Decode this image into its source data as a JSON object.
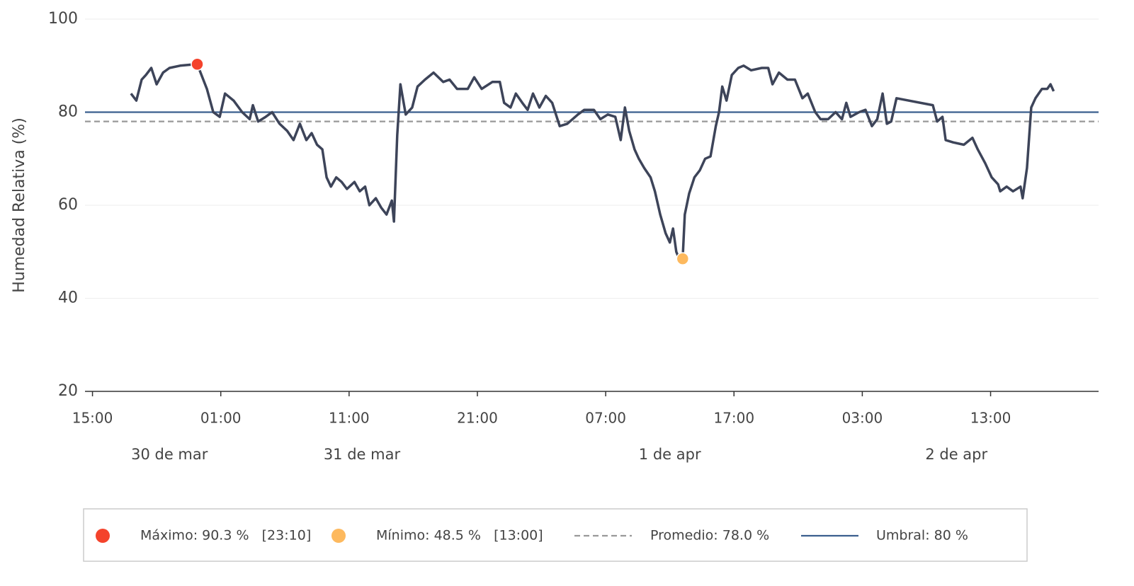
{
  "chart_data": {
    "type": "line",
    "ylabel": "Humedad Relativa (%)",
    "ylim": [
      20,
      100
    ],
    "yticks": [
      20,
      40,
      60,
      80,
      100
    ],
    "grid": true,
    "xlim": [
      "03-30 14:25",
      "04-02 21:25"
    ],
    "xticks": [
      {
        "value": "03-30 15:00",
        "label": "15:00"
      },
      {
        "value": "03-31 01:00",
        "label": "01:00"
      },
      {
        "value": "03-31 11:00",
        "label": "11:00"
      },
      {
        "value": "03-31 21:00",
        "label": "21:00"
      },
      {
        "value": "04-01 07:00",
        "label": "07:00"
      },
      {
        "value": "04-01 17:00",
        "label": "17:00"
      },
      {
        "value": "04-02 03:00",
        "label": "03:00"
      },
      {
        "value": "04-02 13:00",
        "label": "13:00"
      }
    ],
    "day_labels": [
      {
        "value": "03-30 21:00",
        "label": "30 de mar"
      },
      {
        "value": "03-31 12:00",
        "label": "31 de mar"
      },
      {
        "value": "04-01 12:00",
        "label": "1 de apr"
      },
      {
        "value": "04-02 10:20",
        "label": "2 de apr"
      }
    ],
    "color": "#3d4459",
    "x": [
      "03-30 18:00",
      "03-30 18:25",
      "03-30 18:50",
      "03-30 19:10",
      "03-30 19:35",
      "03-30 20:00",
      "03-30 20:30",
      "03-30 21:00",
      "03-30 21:50",
      "03-30 22:40",
      "03-30 23:10",
      "03-30 23:55",
      "03-31 00:25",
      "03-31 00:55",
      "03-31 01:20",
      "03-31 02:00",
      "03-31 02:40",
      "03-31 03:15",
      "03-31 03:30",
      "03-31 03:55",
      "03-31 04:30",
      "03-31 05:00",
      "03-31 05:35",
      "03-31 06:10",
      "03-31 06:40",
      "03-31 07:10",
      "03-31 07:40",
      "03-31 08:05",
      "03-31 08:30",
      "03-31 08:55",
      "03-31 09:15",
      "03-31 09:35",
      "03-31 10:00",
      "03-31 10:25",
      "03-31 10:50",
      "03-31 11:25",
      "03-31 11:50",
      "03-31 12:15",
      "03-31 12:35",
      "03-31 13:05",
      "03-31 13:30",
      "03-31 13:55",
      "03-31 14:20",
      "03-31 14:30",
      "03-31 14:45",
      "03-31 15:00",
      "03-31 15:25",
      "03-31 15:55",
      "03-31 16:20",
      "03-31 16:55",
      "03-31 17:35",
      "03-31 18:20",
      "03-31 18:50",
      "03-31 19:25",
      "03-31 20:15",
      "03-31 20:45",
      "03-31 21:20",
      "03-31 22:10",
      "03-31 22:45",
      "03-31 23:05",
      "03-31 23:35",
      "04-01 00:00",
      "04-01 00:30",
      "04-01 00:55",
      "04-01 01:20",
      "04-01 01:50",
      "04-01 02:20",
      "04-01 02:50",
      "04-01 03:25",
      "04-01 04:00",
      "04-01 04:50",
      "04-01 05:20",
      "04-01 06:05",
      "04-01 06:35",
      "04-01 07:10",
      "04-01 07:45",
      "04-01 08:10",
      "04-01 08:30",
      "04-01 08:50",
      "04-01 09:15",
      "04-01 09:35",
      "04-01 10:00",
      "04-01 10:30",
      "04-01 10:50",
      "04-01 11:15",
      "04-01 11:40",
      "04-01 12:00",
      "04-01 12:15",
      "04-01 12:30",
      "04-01 12:40",
      "04-01 13:00",
      "04-01 13:10",
      "04-01 13:30",
      "04-01 13:55",
      "04-01 14:20",
      "04-01 14:45",
      "04-01 15:10",
      "04-01 15:35",
      "04-01 15:50",
      "04-01 16:05",
      "04-01 16:25",
      "04-01 16:50",
      "04-01 17:20",
      "04-01 17:45",
      "04-01 18:20",
      "04-01 19:10",
      "04-01 19:40",
      "04-01 20:00",
      "04-01 20:30",
      "04-01 21:10",
      "04-01 21:45",
      "04-01 22:20",
      "04-01 22:45",
      "04-01 23:20",
      "04-01 23:45",
      "04-02 00:20",
      "04-02 00:55",
      "04-02 01:25",
      "04-02 01:45",
      "04-02 02:05",
      "04-02 02:45",
      "04-02 03:15",
      "04-02 03:45",
      "04-02 04:10",
      "04-02 04:35",
      "04-02 04:55",
      "04-02 05:15",
      "04-02 05:40",
      "04-02 08:30",
      "04-02 08:50",
      "04-02 09:15",
      "04-02 09:30",
      "04-02 10:05",
      "04-02 10:55",
      "04-02 11:35",
      "04-02 12:00",
      "04-02 12:35",
      "04-02 13:05",
      "04-02 13:35",
      "04-02 13:45",
      "04-02 14:15",
      "04-02 14:45",
      "04-02 15:20",
      "04-02 15:30",
      "04-02 15:50",
      "04-02 16:10",
      "04-02 16:30",
      "04-02 17:00",
      "04-02 17:25",
      "04-02 17:40",
      "04-02 17:55"
    ],
    "values": [
      84,
      82.5,
      87,
      88,
      89.5,
      86,
      88.5,
      89.5,
      90,
      90.2,
      90.3,
      85,
      80,
      79,
      84,
      82.5,
      80,
      78.5,
      81.5,
      78,
      79,
      80,
      77.5,
      76,
      74,
      77.5,
      74,
      75.5,
      73,
      72,
      66,
      64,
      66,
      65,
      63.5,
      65,
      63,
      64,
      60,
      61.5,
      59.5,
      58,
      61,
      56.5,
      75,
      86,
      79.5,
      81,
      85.5,
      87,
      88.5,
      86.5,
      87,
      85,
      85,
      87.5,
      85,
      86.5,
      86.5,
      82,
      81,
      84,
      82,
      80.5,
      84,
      81,
      83.5,
      82,
      77,
      77.5,
      79.5,
      80.5,
      80.5,
      78.5,
      79.5,
      79,
      74,
      81,
      76,
      72,
      70,
      68,
      66,
      63,
      58,
      54,
      52,
      55,
      50,
      48.9,
      48.5,
      58,
      62.5,
      66,
      67.5,
      70,
      70.5,
      77,
      80,
      85.5,
      82.5,
      88,
      89.5,
      90,
      89,
      89.5,
      89.5,
      86,
      88.5,
      87,
      87,
      83,
      84,
      80,
      78.5,
      78.5,
      80,
      78.5,
      82,
      79,
      80,
      80.5,
      77,
      78.5,
      84,
      77.5,
      78,
      83,
      81.5,
      78,
      79,
      74,
      73.5,
      73,
      74.5,
      72,
      69,
      66,
      64.5,
      63,
      64,
      63,
      64,
      61.5,
      68,
      81,
      83,
      85,
      85,
      86,
      84.5
    ],
    "markers": [
      {
        "label": "Máximo: 90.3 %   [23:10]",
        "x": "03-30 23:10",
        "value": 90.3,
        "color": "#f4432c"
      },
      {
        "label": "Mínimo: 48.5 %   [13:00]",
        "x": "04-01 13:00",
        "value": 48.5,
        "color": "#fdb95e"
      }
    ],
    "reference_lines": [
      {
        "label": "Promedio: 78.0 %",
        "value": 78.0,
        "color": "#999999",
        "dashed": true
      },
      {
        "label": "Umbral: 80 %",
        "value": 80,
        "color": "#3b5f8e",
        "dashed": false
      }
    ]
  }
}
